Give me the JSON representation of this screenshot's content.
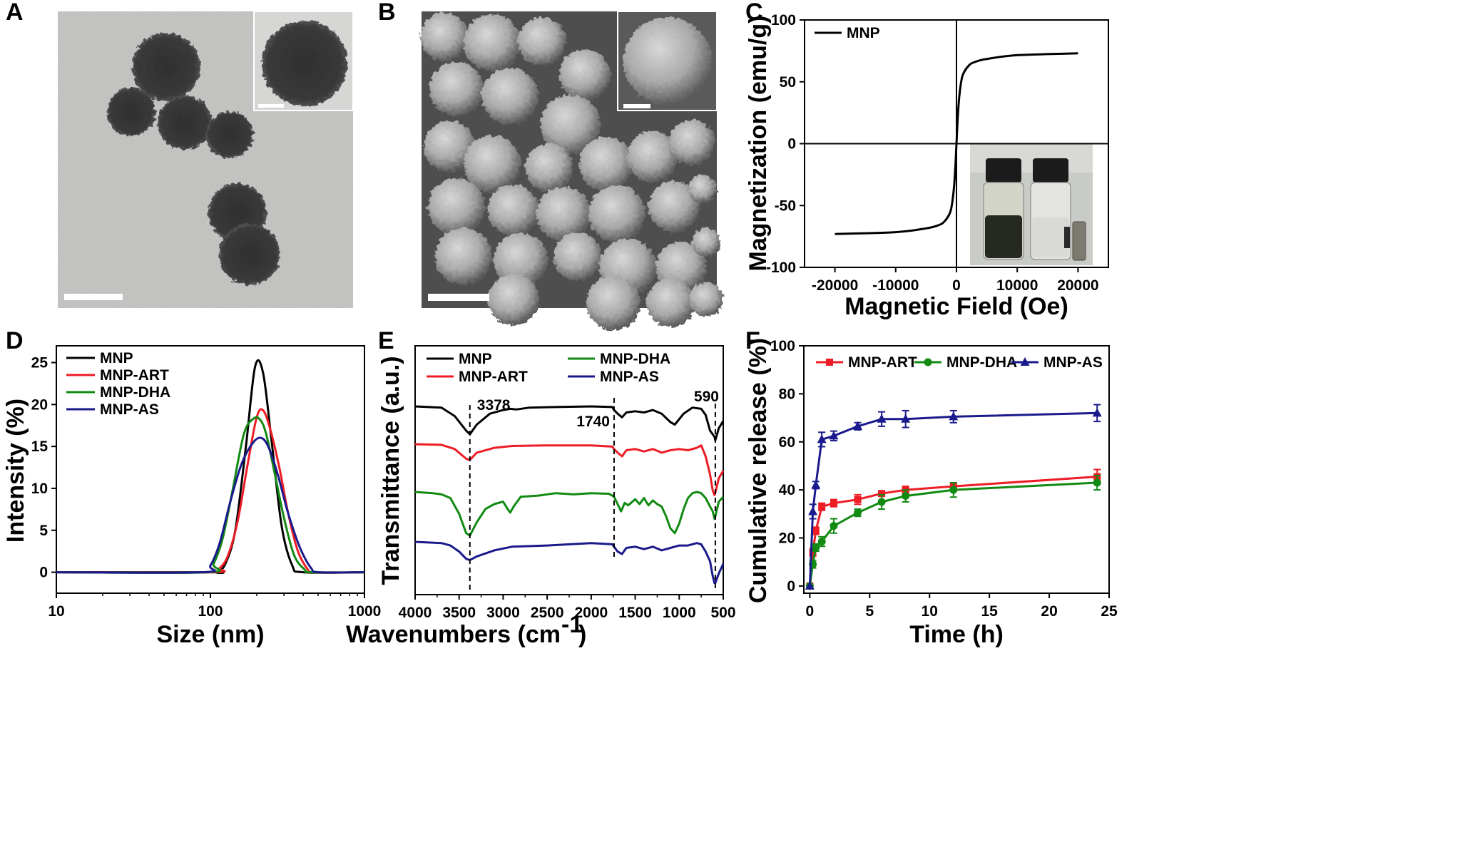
{
  "panel_labels": [
    "A",
    "B",
    "C",
    "D",
    "E",
    "F"
  ],
  "colors": {
    "black": "#000000",
    "red": "#ee1c25",
    "green": "#118a12",
    "blue": "#1a1a8c"
  },
  "chart_data": [
    {
      "id": "C",
      "type": "line",
      "xlabel": "Magnetic Field (Oe)",
      "ylabel": "Magnetization (emu/g)",
      "xlim": [
        -25000,
        25000
      ],
      "ylim": [
        -100,
        100
      ],
      "xticks": [
        -20000,
        -10000,
        0,
        10000,
        20000
      ],
      "xtick_labels": [
        "-20000",
        "-10000",
        "0",
        "10000",
        "20000"
      ],
      "yticks": [
        -100,
        -50,
        0,
        50,
        100
      ],
      "ytick_labels": [
        "-100",
        "-50",
        "0",
        "50",
        "100"
      ],
      "legend_position": "top-left",
      "inset": "photo of two vials (dispersed and magnetically separated)",
      "series": [
        {
          "name": "MNP",
          "color": "#000000",
          "x": [
            -20000,
            -10000,
            -5000,
            -3000,
            -2000,
            -1000,
            -500,
            -200,
            0,
            200,
            500,
            1000,
            2000,
            3000,
            5000,
            10000,
            20000
          ],
          "y": [
            -73,
            -71.5,
            -68.5,
            -66,
            -63,
            -55,
            -40,
            -20,
            0,
            20,
            40,
            55,
            63,
            66,
            68.5,
            71.5,
            73
          ]
        }
      ]
    },
    {
      "id": "D",
      "type": "line",
      "xlabel": "Size (nm)",
      "ylabel": "Intensity (%)",
      "xscale": "log",
      "xlim": [
        10,
        1000
      ],
      "ylim": [
        -2.5,
        27
      ],
      "xticks": [
        10,
        100,
        1000
      ],
      "xtick_labels": [
        "10",
        "100",
        "1000"
      ],
      "yticks": [
        0,
        5,
        10,
        15,
        20,
        25
      ],
      "ytick_labels": [
        "0",
        "5",
        "10",
        "15",
        "20",
        "25"
      ],
      "legend_position": "top-left",
      "series": [
        {
          "name": "MNP",
          "color": "#000000",
          "x": [
            10,
            100,
            110,
            125,
            145,
            170,
            195,
            220,
            250,
            290,
            340,
            400,
            1000
          ],
          "y": [
            0,
            0,
            0,
            1,
            5,
            15,
            24.5,
            23.7,
            15.5,
            5.5,
            0.8,
            0,
            0
          ]
        },
        {
          "name": "MNP-ART",
          "color": "#ee1c25",
          "x": [
            10,
            100,
            115,
            130,
            150,
            175,
            200,
            220,
            245,
            280,
            320,
            370,
            430,
            470,
            1000
          ],
          "y": [
            0,
            0,
            0.5,
            2,
            6,
            13,
            18.5,
            19.3,
            17,
            12.5,
            7,
            2.5,
            0.3,
            0,
            0
          ]
        },
        {
          "name": "MNP-DHA",
          "color": "#118a12",
          "x": [
            10,
            95,
            105,
            120,
            140,
            165,
            190,
            210,
            230,
            260,
            300,
            350,
            410,
            450,
            1000
          ],
          "y": [
            0,
            0,
            1,
            4,
            10,
            16.5,
            18.3,
            18.2,
            16.5,
            12,
            6.5,
            2,
            0.3,
            0,
            0
          ]
        },
        {
          "name": "MNP-AS",
          "color": "#1a1a8c",
          "x": [
            10,
            88,
            100,
            115,
            135,
            160,
            190,
            215,
            240,
            275,
            320,
            380,
            450,
            510,
            1000
          ],
          "y": [
            0,
            0,
            0.8,
            3.5,
            8.5,
            13,
            15.5,
            16,
            14.8,
            11.5,
            7,
            3,
            0.5,
            0,
            0
          ]
        }
      ]
    },
    {
      "id": "E",
      "type": "line",
      "xlabel": "Wavenumbers (cm",
      "xlabel_sup": "-1",
      "xlabel_end": ")",
      "ylabel": "Transmittance (a.u.)",
      "xlim": [
        4000,
        500
      ],
      "xreversed": true,
      "xticks": [
        4000,
        3500,
        3000,
        2500,
        2000,
        1500,
        1000,
        500
      ],
      "xtick_labels": [
        "4000",
        "3500",
        "3000",
        "2500",
        "2000",
        "1500",
        "1000",
        "500"
      ],
      "yticks_shown": false,
      "legend_position": "top",
      "annotations": [
        {
          "text": "3378",
          "x": 3378
        },
        {
          "text": "1740",
          "x": 1740
        },
        {
          "text": "590",
          "x": 590
        }
      ],
      "series": [
        {
          "name": "MNP",
          "color": "#000000",
          "x": [
            4000,
            3700,
            3550,
            3420,
            3378,
            3300,
            3150,
            3000,
            2920,
            2850,
            2700,
            2400,
            2000,
            1760,
            1740,
            1700,
            1650,
            1600,
            1500,
            1400,
            1300,
            1200,
            1100,
            1050,
            950,
            850,
            750,
            700,
            650,
            600,
            590,
            550,
            500
          ],
          "y": [
            100,
            99,
            92,
            80,
            77,
            85,
            94,
            97,
            98,
            97.5,
            99,
            99.5,
            100,
            99.5,
            97,
            94,
            91,
            95,
            96,
            95,
            97,
            94,
            87,
            85,
            94,
            99,
            98,
            93,
            80,
            75,
            72,
            82,
            88
          ]
        },
        {
          "name": "MNP-ART",
          "color": "#ee1c25",
          "x": [
            4000,
            3700,
            3550,
            3420,
            3378,
            3300,
            3100,
            2900,
            2500,
            2000,
            1760,
            1740,
            1700,
            1650,
            1600,
            1500,
            1400,
            1300,
            1200,
            1100,
            1000,
            900,
            800,
            750,
            700,
            650,
            620,
            600,
            590,
            550,
            500
          ],
          "y": [
            100,
            99.5,
            96,
            88,
            87,
            93,
            97,
            98.5,
            99,
            99,
            98,
            96,
            93,
            90,
            95,
            96,
            94,
            96,
            93,
            95,
            96,
            95,
            97,
            99,
            90,
            75,
            62,
            58,
            60,
            72,
            78
          ]
        },
        {
          "name": "MNP-DHA",
          "color": "#118a12",
          "x": [
            4000,
            3800,
            3700,
            3600,
            3500,
            3420,
            3378,
            3300,
            3200,
            3100,
            3000,
            2950,
            2920,
            2880,
            2800,
            2600,
            2400,
            2200,
            2000,
            1800,
            1760,
            1740,
            1700,
            1660,
            1620,
            1580,
            1500,
            1450,
            1400,
            1350,
            1300,
            1250,
            1200,
            1150,
            1100,
            1050,
            1000,
            950,
            900,
            850,
            800,
            750,
            700,
            650,
            620,
            600,
            590,
            550,
            500
          ],
          "y": [
            100,
            99,
            98,
            95,
            82,
            66,
            64,
            75,
            86,
            90,
            92,
            86,
            83,
            88,
            96,
            97,
            99,
            98,
            99,
            98.5,
            97,
            96,
            90,
            84,
            91,
            89,
            94,
            90,
            95,
            89,
            93,
            90,
            88,
            80,
            70,
            66,
            74,
            86,
            95,
            99,
            100,
            99,
            95,
            88,
            84,
            78,
            80,
            92,
            96
          ]
        },
        {
          "name": "MNP-AS",
          "color": "#1a1a8c",
          "x": [
            4000,
            3700,
            3600,
            3500,
            3420,
            3378,
            3300,
            3100,
            2900,
            2500,
            2000,
            1760,
            1740,
            1700,
            1650,
            1600,
            1500,
            1400,
            1300,
            1200,
            1100,
            1000,
            900,
            800,
            750,
            700,
            650,
            620,
            600,
            590,
            550,
            500
          ],
          "y": [
            100,
            99,
            97,
            92,
            86,
            85,
            88,
            93,
            96,
            97,
            99,
            98,
            96,
            92,
            90,
            95,
            96,
            94,
            96,
            93,
            95,
            97,
            97,
            99,
            98,
            92,
            84,
            72,
            66,
            66,
            74,
            82
          ]
        }
      ]
    },
    {
      "id": "F",
      "type": "line",
      "xlabel": "Time (h)",
      "ylabel": "Cumulative release (%)",
      "xlim": [
        -0.5,
        25
      ],
      "ylim": [
        -3,
        100
      ],
      "xticks": [
        0,
        5,
        10,
        15,
        20,
        25
      ],
      "xtick_labels": [
        "0",
        "5",
        "10",
        "15",
        "20",
        "25"
      ],
      "yticks": [
        0,
        20,
        40,
        60,
        80,
        100
      ],
      "ytick_labels": [
        "0",
        "20",
        "40",
        "60",
        "80",
        "100"
      ],
      "legend_position": "top",
      "series": [
        {
          "name": "MNP-ART",
          "color": "#ee1c25",
          "marker": "square",
          "x": [
            0,
            0.25,
            0.5,
            1,
            2,
            4,
            6,
            8,
            12,
            24
          ],
          "y": [
            0,
            14,
            23,
            33,
            34.5,
            36,
            38.5,
            40,
            41.5,
            45.5
          ],
          "err": [
            0,
            1.5,
            1.5,
            1.5,
            1.5,
            2,
            1,
            1.5,
            1.5,
            3
          ]
        },
        {
          "name": "MNP-DHA",
          "color": "#118a12",
          "marker": "circle",
          "x": [
            0,
            0.25,
            0.5,
            1,
            2,
            4,
            6,
            8,
            12,
            24
          ],
          "y": [
            0,
            9,
            16,
            18.5,
            25,
            30.5,
            35,
            37.5,
            40,
            43
          ],
          "err": [
            0,
            1.5,
            1.5,
            2,
            3,
            1.5,
            3,
            2.5,
            3,
            3
          ]
        },
        {
          "name": "MNP-AS",
          "color": "#1a1a8c",
          "marker": "triangle",
          "x": [
            0,
            0.25,
            0.5,
            1,
            2,
            4,
            6,
            8,
            12,
            24
          ],
          "y": [
            0,
            31,
            42,
            61,
            62.5,
            66.5,
            69.5,
            69.5,
            70.5,
            72
          ],
          "err": [
            0,
            3,
            1.5,
            3,
            2,
            1.5,
            3,
            3.5,
            2.5,
            3.5
          ]
        }
      ]
    }
  ]
}
